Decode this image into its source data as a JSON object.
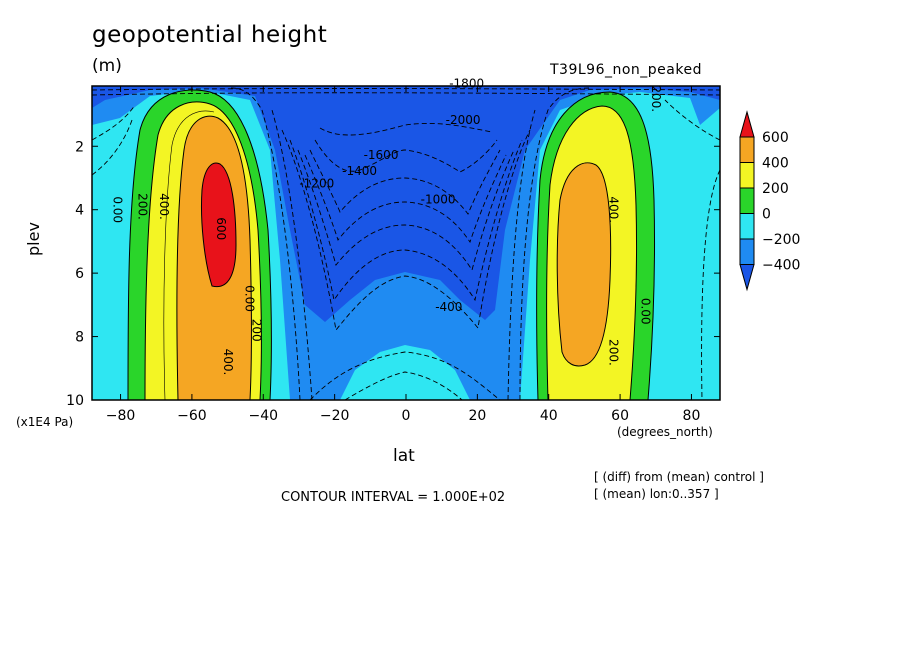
{
  "title": "geopotential height",
  "units": "(m)",
  "run_label": "T39L96_non_peaked",
  "contour_interval": "CONTOUR INTERVAL = 1.000E+02",
  "notes": [
    "[ (diff) from (mean) control ]",
    "[ (mean) lon:0..357 ]"
  ],
  "chart_data": {
    "type": "heatmap",
    "title": "geopotential height",
    "xlabel": "lat",
    "x_unit": "(degrees_north)",
    "ylabel": "plev",
    "y_unit": "(x1E4 Pa)",
    "xlim": [
      -88,
      88
    ],
    "ylim": [
      0.1,
      10
    ],
    "y_inverted": true,
    "x_ticks": [
      -80,
      -60,
      -40,
      -20,
      0,
      20,
      40,
      60,
      80
    ],
    "x_tick_labels": [
      "−80",
      "−60",
      "−40",
      "−20",
      "0",
      "20",
      "40",
      "60",
      "80"
    ],
    "y_ticks": [
      2,
      4,
      6,
      8,
      10
    ],
    "y_tick_labels": [
      "2",
      "4",
      "6",
      "8",
      "10"
    ],
    "colorbar": {
      "levels": [
        600,
        400,
        200,
        0,
        -200,
        -400
      ],
      "labels": [
        "600",
        "400",
        "200",
        "0",
        "−200",
        "−400"
      ],
      "colors": [
        "#e8121a",
        "#f5a623",
        "#f3f524",
        "#2ad52a",
        "#2fe6f2",
        "#1f8bf2",
        "#1a56e6"
      ]
    },
    "contour_labels": [
      {
        "text": "0.00",
        "lat": -82,
        "p": 4
      },
      {
        "text": "200.",
        "lat": -75,
        "p": 3.9
      },
      {
        "text": "400.",
        "lat": -69,
        "p": 3.9
      },
      {
        "text": "600",
        "lat": -53,
        "p": 4.6
      },
      {
        "text": "0.00",
        "lat": -45,
        "p": 6.8
      },
      {
        "text": "200",
        "lat": -43,
        "p": 7.8
      },
      {
        "text": "400.",
        "lat": -51,
        "p": 8.8
      },
      {
        "text": "-1800",
        "lat": 17,
        "p": 0.15
      },
      {
        "text": "-2000",
        "lat": 16,
        "p": 1.3
      },
      {
        "text": "-1600",
        "lat": -7,
        "p": 2.4
      },
      {
        "text": "-1400",
        "lat": -13,
        "p": 2.9
      },
      {
        "text": "-1200",
        "lat": -25,
        "p": 3.3
      },
      {
        "text": "-1000",
        "lat": 9,
        "p": 3.8
      },
      {
        "text": "-400",
        "lat": 12,
        "p": 7.2
      },
      {
        "text": "200.",
        "lat": 69,
        "p": 0.5
      },
      {
        "text": "400.",
        "lat": 57,
        "p": 4
      },
      {
        "text": "0.00",
        "lat": 66,
        "p": 7.2
      },
      {
        "text": "200.",
        "lat": 57,
        "p": 8.5
      }
    ]
  }
}
